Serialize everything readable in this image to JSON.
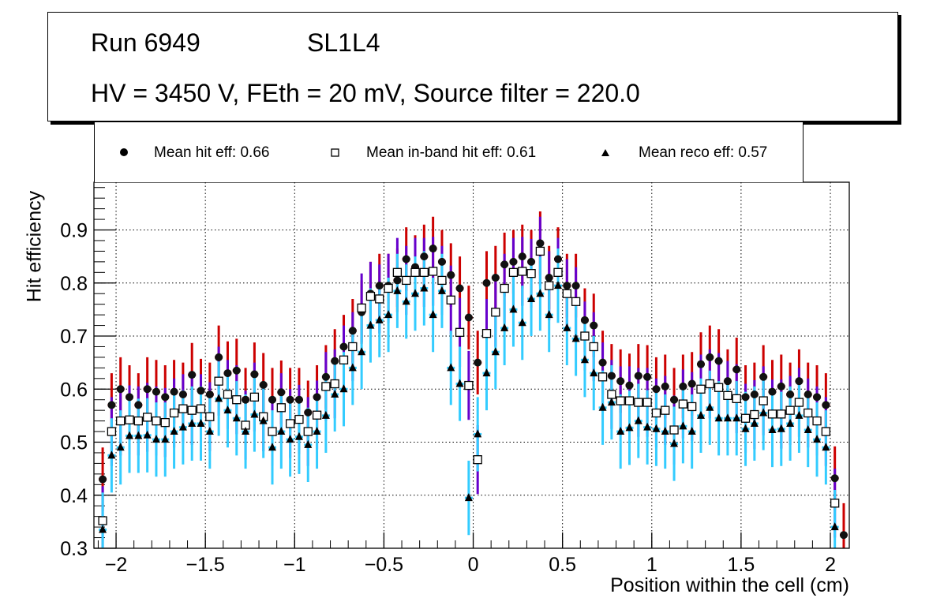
{
  "title": {
    "run": "Run 6949",
    "layer": "SL1L4",
    "conditions": "HV = 3450 V, FEth = 20 mV, Source filter = 220.0"
  },
  "chart_data": {
    "type": "scatter",
    "xlabel": "Position within the cell (cm)",
    "ylabel": "Hit efficiency",
    "xlim": [
      -2.124,
      2.106
    ],
    "ylim": [
      0.3,
      0.99
    ],
    "xticks": [
      -2,
      -1.5,
      -1,
      -0.5,
      0,
      0.5,
      1,
      1.5,
      2
    ],
    "xtick_labels": [
      "−2",
      "−1.5",
      "−1",
      "−0.5",
      "0",
      "0.5",
      "1",
      "1.5",
      "2"
    ],
    "yticks": [
      0.3,
      0.4,
      0.5,
      0.6,
      0.7,
      0.8,
      0.9
    ],
    "ytick_labels": [
      "0.3",
      "0.4",
      "0.5",
      "0.6",
      "0.7",
      "0.8",
      "0.9"
    ],
    "grid": true,
    "legend_position": "top",
    "x_start": -2.075,
    "x_step": 0.05,
    "series": [
      {
        "name": "Mean hit  eff: 0.66",
        "marker": "circle",
        "err_color": "#cc0000",
        "err": 0.06,
        "values": [
          0.43,
          0.57,
          0.6,
          0.585,
          0.57,
          0.6,
          0.595,
          0.585,
          0.595,
          0.59,
          0.627,
          0.597,
          0.59,
          0.66,
          0.63,
          0.635,
          0.58,
          0.628,
          0.608,
          0.58,
          0.594,
          0.58,
          0.58,
          0.556,
          0.585,
          0.623,
          0.653,
          0.68,
          0.71,
          0.745,
          0.78,
          0.795,
          0.795,
          0.805,
          0.845,
          0.83,
          0.85,
          0.865,
          0.84,
          0.815,
          0.79,
          0.735,
          0.65,
          0.8,
          0.81,
          0.835,
          0.84,
          0.85,
          0.84,
          0.875,
          0.81,
          0.845,
          0.795,
          0.795,
          0.73,
          0.72,
          0.65,
          0.625,
          0.615,
          0.607,
          0.625,
          0.623,
          0.6,
          0.605,
          0.58,
          0.605,
          0.61,
          0.647,
          0.66,
          0.653,
          0.615,
          0.637,
          0.585,
          0.59,
          0.623,
          0.595,
          0.605,
          0.59,
          0.615,
          0.59,
          0.585,
          0.57,
          0.432,
          0.325
        ]
      },
      {
        "name": "Mean in-band hit eff: 0.61",
        "marker": "open-square",
        "err_color": "#6600cc",
        "err": 0.065,
        "values": [
          0.352,
          0.52,
          0.54,
          0.542,
          0.54,
          0.547,
          0.54,
          0.537,
          0.555,
          0.563,
          0.56,
          0.563,
          0.548,
          0.615,
          0.59,
          0.58,
          0.532,
          0.585,
          0.548,
          0.52,
          0.565,
          0.535,
          0.543,
          0.52,
          0.551,
          0.605,
          0.61,
          0.655,
          0.68,
          0.753,
          0.775,
          0.77,
          0.79,
          0.82,
          0.805,
          0.82,
          0.82,
          0.822,
          0.805,
          0.768,
          0.707,
          0.607,
          0.467,
          0.705,
          0.745,
          0.79,
          0.82,
          0.822,
          0.818,
          0.86,
          0.795,
          0.82,
          0.78,
          0.765,
          0.7,
          0.68,
          0.623,
          0.59,
          0.578,
          0.578,
          0.575,
          0.575,
          0.555,
          0.56,
          0.523,
          0.572,
          0.567,
          0.6,
          0.61,
          0.603,
          0.588,
          0.582,
          0.545,
          0.552,
          0.578,
          0.553,
          0.553,
          0.56,
          0.575,
          0.555,
          0.54,
          0.52,
          0.385,
          null
        ]
      },
      {
        "name": "Mean reco eff: 0.57",
        "marker": "triangle",
        "err_color": "#33ccff",
        "err": 0.07,
        "values": [
          0.335,
          0.475,
          0.49,
          0.512,
          0.512,
          0.513,
          0.505,
          0.505,
          0.52,
          0.528,
          0.535,
          0.535,
          0.52,
          0.582,
          0.56,
          0.545,
          0.52,
          0.552,
          0.54,
          0.49,
          0.52,
          0.505,
          0.51,
          0.495,
          0.52,
          0.55,
          0.59,
          0.6,
          0.64,
          0.67,
          0.72,
          0.73,
          0.74,
          0.785,
          0.765,
          0.78,
          0.79,
          0.74,
          0.785,
          0.64,
          0.61,
          0.395,
          0.515,
          0.63,
          0.67,
          0.715,
          0.75,
          0.725,
          0.77,
          0.78,
          0.74,
          0.795,
          0.715,
          0.695,
          0.655,
          0.63,
          0.565,
          0.575,
          0.52,
          0.527,
          0.54,
          0.528,
          0.525,
          0.52,
          0.497,
          0.53,
          0.52,
          0.55,
          0.565,
          0.545,
          0.545,
          0.545,
          0.525,
          0.535,
          0.555,
          0.523,
          0.525,
          0.535,
          0.55,
          0.523,
          0.505,
          0.49,
          0.34,
          null
        ]
      }
    ]
  }
}
